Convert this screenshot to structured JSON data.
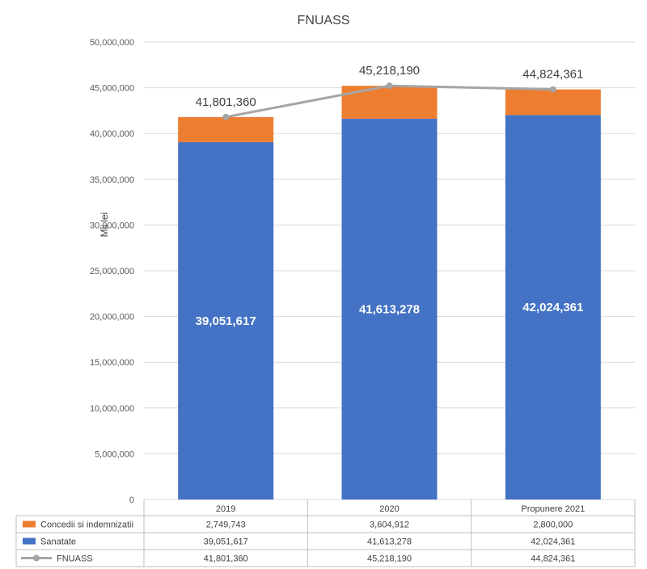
{
  "chart_data": {
    "type": "bar",
    "title": "FNUASS",
    "xlabel": "",
    "ylabel": "Mii lei",
    "ylim": [
      0,
      50000000
    ],
    "yticks": [
      "0",
      "5,000,000",
      "10,000,000",
      "15,000,000",
      "20,000,000",
      "25,000,000",
      "30,000,000",
      "35,000,000",
      "40,000,000",
      "45,000,000",
      "50,000,000"
    ],
    "ytick_values": [
      0,
      5000000,
      10000000,
      15000000,
      20000000,
      25000000,
      30000000,
      35000000,
      40000000,
      45000000,
      50000000
    ],
    "categories": [
      "2019",
      "2020",
      "Propunere 2021"
    ],
    "stacked": true,
    "grid": true,
    "legend": "data-table-bottom",
    "series": [
      {
        "name": "Sanatate",
        "kind": "bar",
        "color": "#4472c4",
        "values": [
          39051617,
          41613278,
          42024361
        ],
        "labels": [
          "39,051,617",
          "41,613,278",
          "42,024,361"
        ]
      },
      {
        "name": "Concedii si indemnizatii",
        "kind": "bar",
        "color": "#ed7d31",
        "values": [
          2749743,
          3604912,
          2800000
        ],
        "labels": [
          "2,749,743",
          "3,604,912",
          "2,800,000"
        ]
      },
      {
        "name": "FNUASS",
        "kind": "line",
        "color": "#a5a5a5",
        "values": [
          41801360,
          45218190,
          44824361
        ],
        "labels": [
          "41,801,360",
          "45,218,190",
          "44,824,361"
        ]
      }
    ]
  }
}
